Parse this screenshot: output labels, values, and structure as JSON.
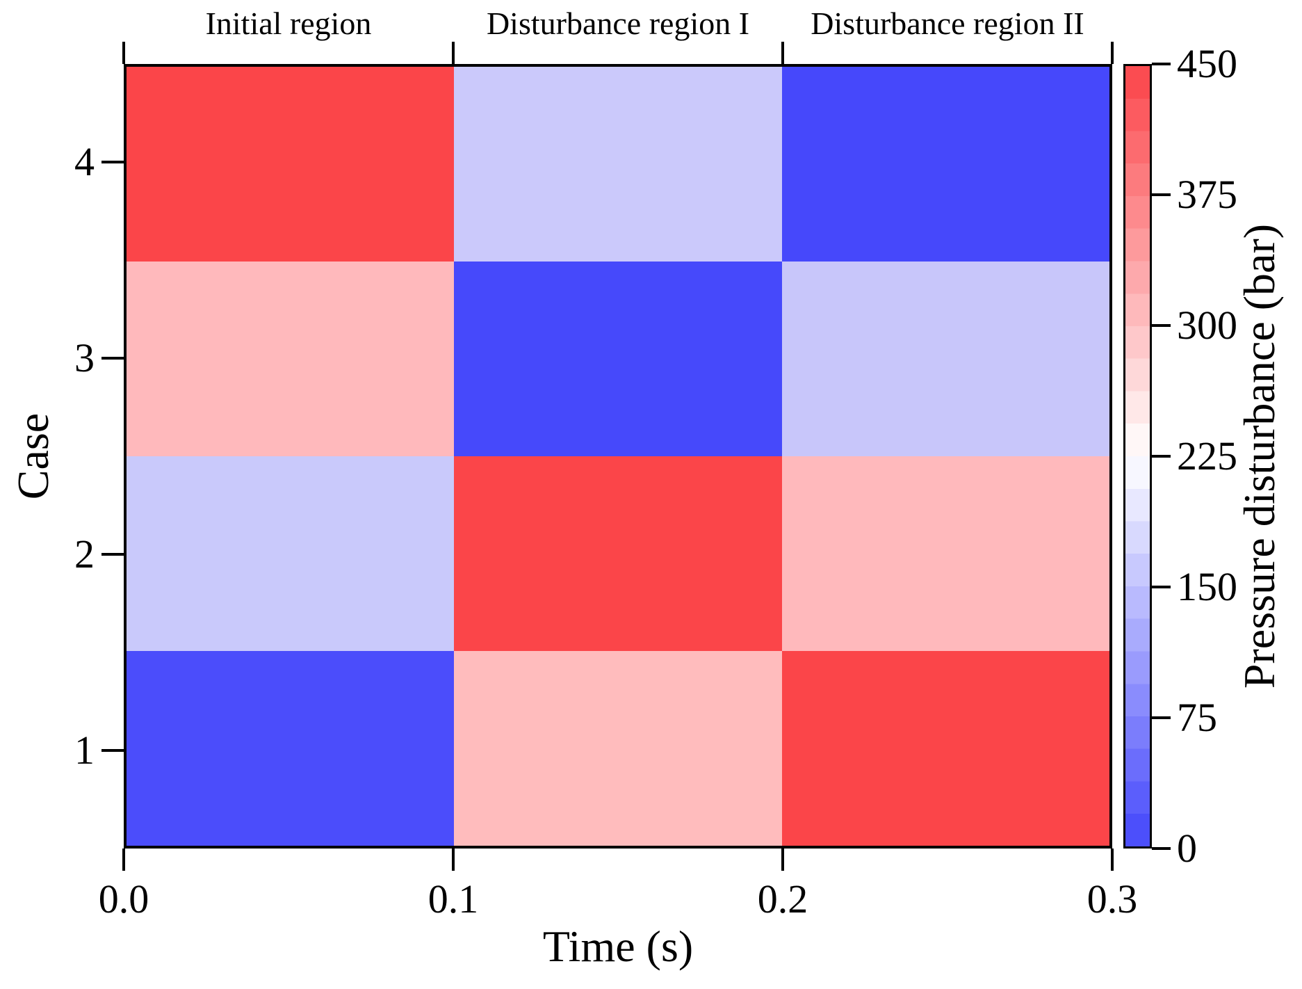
{
  "chart_data": {
    "type": "heatmap",
    "title": "",
    "xlabel": "Time (s)",
    "ylabel": "Case",
    "column_headers": [
      "Initial region",
      "Disturbance region I",
      "Disturbance region II"
    ],
    "columns_time_ranges_s": [
      [
        0.0,
        0.1
      ],
      [
        0.1,
        0.2
      ],
      [
        0.2,
        0.3
      ]
    ],
    "x_ticks": [
      "0.0",
      "0.1",
      "0.2",
      "0.3"
    ],
    "x_tick_values": [
      0.0,
      0.1,
      0.2,
      0.3
    ],
    "y_ticks_top_to_bottom": [
      "4",
      "3",
      "2",
      "1"
    ],
    "rows": [
      {
        "case": 4,
        "values_bar": [
          450,
          150,
          0
        ],
        "cell_colors": [
          "#FB4549",
          "#CBC9FB",
          "#4648FB"
        ]
      },
      {
        "case": 3,
        "values_bar": [
          300,
          0,
          150
        ],
        "cell_colors": [
          "#FFB9BC",
          "#4649FB",
          "#C8C6FA"
        ]
      },
      {
        "case": 2,
        "values_bar": [
          150,
          450,
          300
        ],
        "cell_colors": [
          "#C9C9FB",
          "#FB4549",
          "#FFB9BC"
        ]
      },
      {
        "case": 1,
        "values_bar": [
          0,
          300,
          450
        ],
        "cell_colors": [
          "#4B4DFB",
          "#FFBCBD",
          "#FB4549"
        ]
      }
    ],
    "colorbar": {
      "label": "Pressure disturbance (bar)",
      "min": 0,
      "max": 450,
      "tick_labels": [
        "450",
        "375",
        "300",
        "225",
        "150",
        "75",
        "0"
      ],
      "tick_values": [
        450,
        375,
        300,
        225,
        150,
        75,
        0
      ],
      "steps": 24,
      "color_max": "#FB4449",
      "color_mid": "#FFFFFF",
      "color_min": "#4447FB"
    },
    "grid": false,
    "frame_color": "#000000",
    "legend_position": "right-colorbar"
  }
}
